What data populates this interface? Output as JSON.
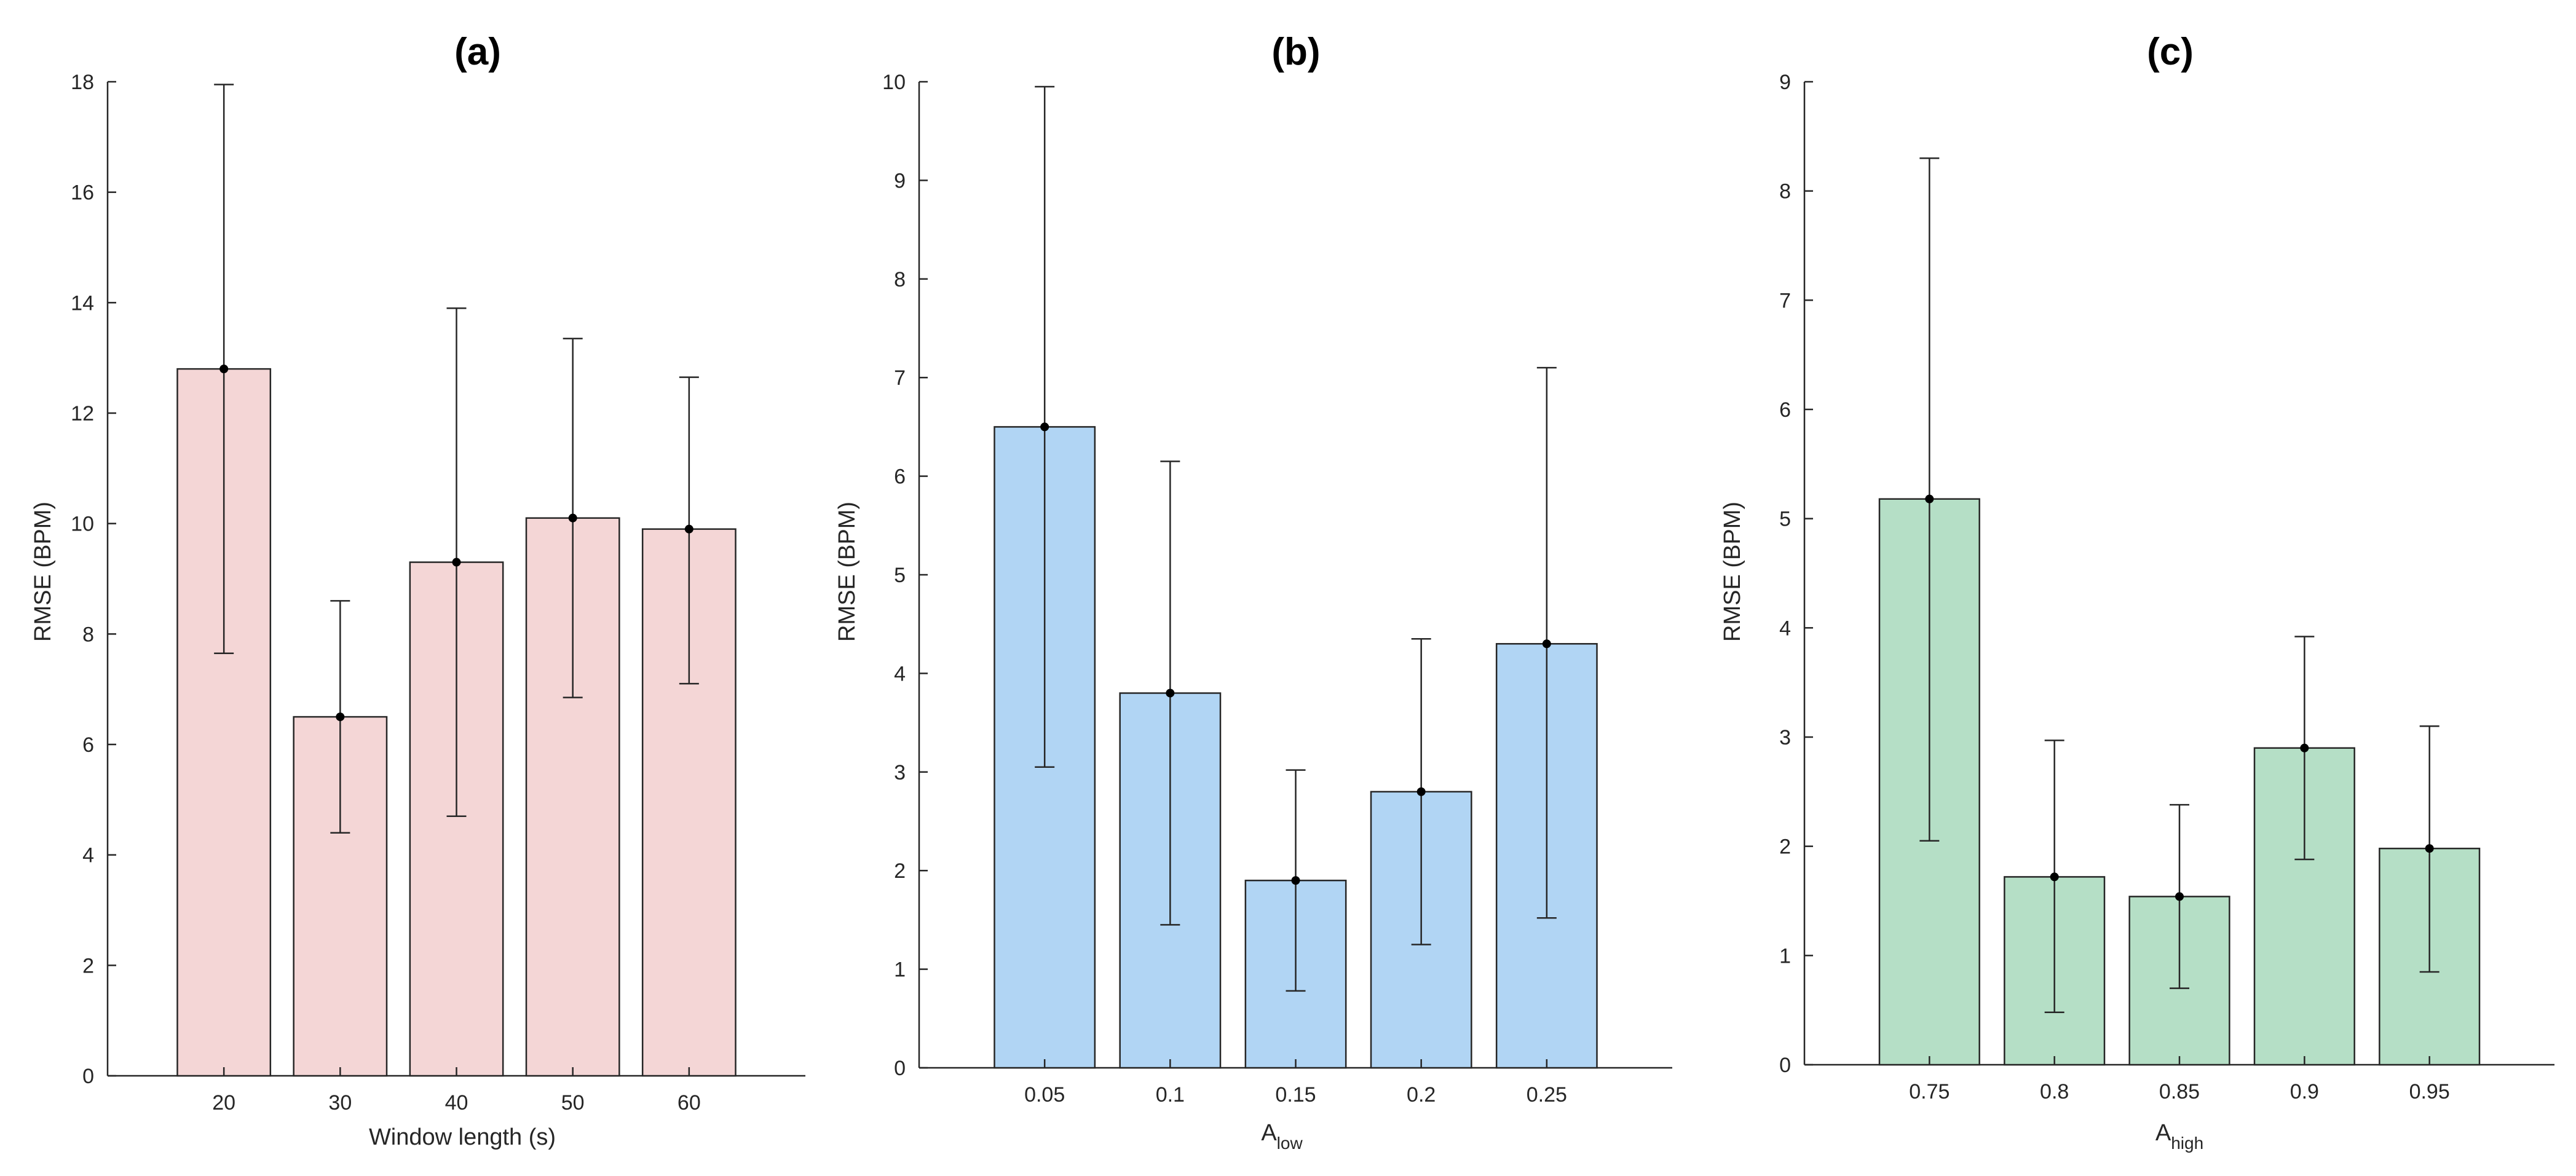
{
  "chart_data": [
    {
      "type": "bar",
      "title": "(a)",
      "xlabel": "Window length (s)",
      "ylabel": "RMSE (BPM)",
      "categories": [
        "20",
        "30",
        "40",
        "50",
        "60"
      ],
      "values": [
        12.8,
        6.5,
        9.3,
        10.1,
        9.9
      ],
      "error_low": [
        7.65,
        4.4,
        4.7,
        6.85,
        7.1
      ],
      "error_high": [
        17.95,
        8.6,
        13.9,
        13.35,
        12.65
      ],
      "ylim": [
        0,
        18
      ],
      "yticks": [
        0,
        2,
        4,
        6,
        8,
        10,
        12,
        14,
        16,
        18
      ],
      "bar_color": "#f4d6d6"
    },
    {
      "type": "bar",
      "title": "(b)",
      "xlabel": "A",
      "xlabel_sub": "low",
      "ylabel": "RMSE (BPM)",
      "categories": [
        "0.05",
        "0.1",
        "0.15",
        "0.2",
        "0.25"
      ],
      "values": [
        6.5,
        3.8,
        1.9,
        2.8,
        4.3
      ],
      "error_low": [
        3.05,
        1.45,
        0.78,
        1.25,
        1.52
      ],
      "error_high": [
        9.95,
        6.15,
        3.02,
        4.35,
        7.1
      ],
      "ylim": [
        0,
        10
      ],
      "yticks": [
        0,
        1,
        2,
        3,
        4,
        5,
        6,
        7,
        8,
        9,
        10
      ],
      "bar_color": "#b1d5f4"
    },
    {
      "type": "bar",
      "title": "(c)",
      "xlabel": "A",
      "xlabel_sub": "high",
      "ylabel": "RMSE (BPM)",
      "categories": [
        "0.75",
        "0.8",
        "0.85",
        "0.9",
        "0.95"
      ],
      "values": [
        5.18,
        1.72,
        1.54,
        2.9,
        1.98
      ],
      "error_low": [
        2.05,
        0.48,
        0.7,
        1.88,
        0.85
      ],
      "error_high": [
        8.3,
        2.97,
        2.38,
        3.92,
        3.1
      ],
      "ylim": [
        0,
        9
      ],
      "yticks": [
        0,
        1,
        2,
        3,
        4,
        5,
        6,
        7,
        8,
        9
      ],
      "bar_color": "#b5dfc6"
    }
  ]
}
